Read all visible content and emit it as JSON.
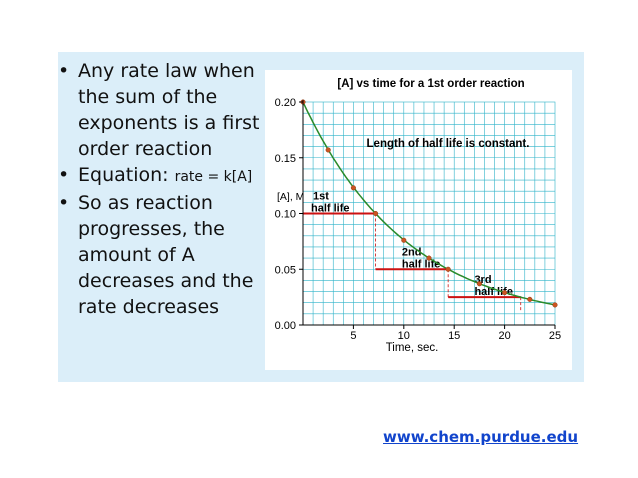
{
  "slide": {
    "bullets": [
      {
        "text": "Any rate law when the sum of the exponents is a first order reaction"
      },
      {
        "text": "Equation: ",
        "small": "rate = k[A]"
      },
      {
        "text": "So as reaction progresses, the amount of A decreases and the rate decreases"
      }
    ],
    "source_link": "www.chem.purdue.edu"
  },
  "chart_data": {
    "type": "line",
    "title": "[A] vs time for a 1st order reaction",
    "xlabel": "Time, sec.",
    "ylabel": "[A], M",
    "xlim": [
      0,
      25
    ],
    "ylim": [
      0,
      0.2
    ],
    "xticks": [
      "5",
      "10",
      "15",
      "20",
      "25"
    ],
    "yticks": [
      "0.00",
      "0.05",
      "0.10",
      "0.15",
      "0.20"
    ],
    "grid": true,
    "annotation": "Length of half life is constant.",
    "series": [
      {
        "x": [
          0,
          2.5,
          5,
          7.2,
          10,
          12.5,
          14.4,
          17.5,
          20,
          22.5,
          25
        ],
        "y": [
          0.2,
          0.157,
          0.123,
          0.1,
          0.076,
          0.06,
          0.05,
          0.037,
          0.029,
          0.023,
          0.018
        ],
        "color": "#2a8a2a",
        "marker_color": "#cc5522"
      }
    ],
    "half_lives": [
      {
        "label1": "1st",
        "label2": "half life",
        "t_start": 0,
        "t_end": 7.2,
        "conc": 0.1
      },
      {
        "label1": "2nd",
        "label2": "half life",
        "t_start": 7.2,
        "t_end": 14.4,
        "conc": 0.05
      },
      {
        "label1": "3rd",
        "label2": "half life",
        "t_start": 14.4,
        "t_end": 21.6,
        "conc": 0.025
      }
    ],
    "half_life_color": "#cc1111"
  }
}
